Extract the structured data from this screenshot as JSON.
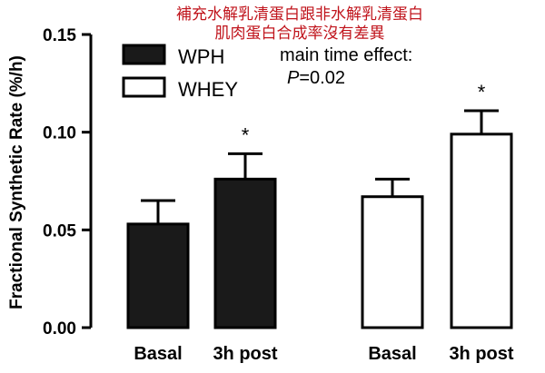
{
  "chart_data": {
    "type": "bar",
    "title_lines": [
      "補充水解乳清蛋白跟非水解乳清蛋白",
      "肌肉蛋白合成率沒有差異"
    ],
    "ylabel": "Fractional Synthetic Rate (%/h)",
    "ylim": [
      0,
      0.15
    ],
    "yticks": [
      "0.00",
      "0.05",
      "0.10",
      "0.15"
    ],
    "grid": false,
    "legend_position": "top-left",
    "annotation": [
      "main time effect:",
      "P",
      "=0.02"
    ],
    "colors": {
      "WPH": "#1a1a1a",
      "WHEY": "#ffffff",
      "outline": "#000000",
      "title": "#c0141c"
    },
    "series": [
      {
        "name": "WPH",
        "categories": [
          "Basal",
          "3h post"
        ],
        "values": [
          0.053,
          0.076
        ],
        "errors": [
          0.012,
          0.013
        ],
        "significant": [
          "",
          "*"
        ]
      },
      {
        "name": "WHEY",
        "categories": [
          "Basal",
          "3h post"
        ],
        "values": [
          0.067,
          0.099
        ],
        "errors": [
          0.009,
          0.012
        ],
        "significant": [
          "",
          "*"
        ]
      }
    ]
  }
}
